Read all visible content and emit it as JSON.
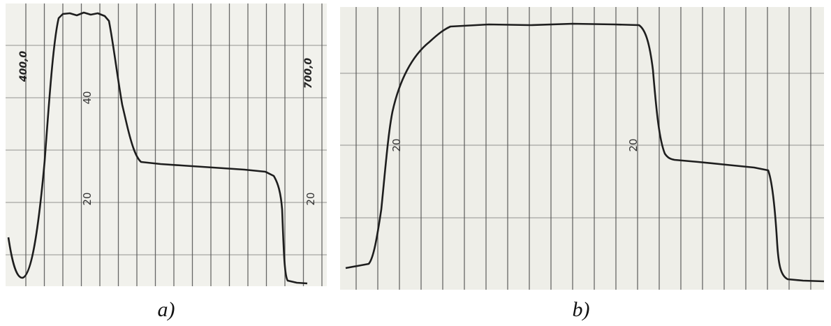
{
  "panels": [
    {
      "caption": "a)",
      "labels": [
        "400,0",
        "40",
        "20",
        "700,0",
        "20"
      ]
    },
    {
      "caption": "b)",
      "labels": [
        "20",
        "20"
      ]
    }
  ]
}
